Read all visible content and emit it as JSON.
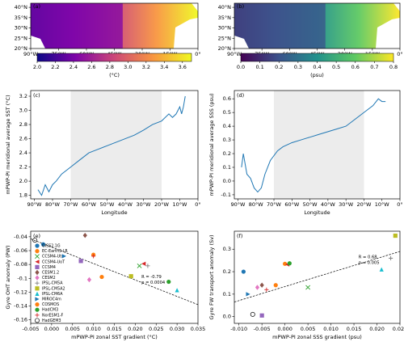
{
  "chart_data": [
    {
      "type": "heatmap",
      "panel": "(a)",
      "xlim": [
        -90,
        0
      ],
      "ylim": [
        20,
        42
      ],
      "xticks": [
        {
          "value": -90,
          "label": "90°W"
        },
        {
          "value": -75,
          "label": "75°W"
        },
        {
          "value": -60,
          "label": "60°W"
        },
        {
          "value": -45,
          "label": "45°W"
        },
        {
          "value": -30,
          "label": "30°W"
        },
        {
          "value": -15,
          "label": "15°W"
        },
        {
          "value": 0,
          "label": "0°"
        }
      ],
      "yticks": [
        {
          "value": 20,
          "label": "20°N"
        },
        {
          "value": 25,
          "label": "25°N"
        },
        {
          "value": 30,
          "label": "30°N"
        },
        {
          "value": 35,
          "label": "35°N"
        },
        {
          "value": 40,
          "label": "40°N"
        }
      ],
      "colorscale": [
        "#0d0887",
        "#7e03a8",
        "#cc4778",
        "#f89540",
        "#f0f921"
      ],
      "clim": [
        2.0,
        3.7
      ],
      "cticks": [
        {
          "value": 2.0,
          "label": "2.0"
        },
        2.2,
        2.4,
        2.6,
        2.8,
        {
          "value": 3.0,
          "label": "3.0"
        },
        3.2,
        3.4,
        3.6
      ],
      "colorbar_label": "(°C)"
    },
    {
      "type": "heatmap",
      "panel": "(b)",
      "xlim": [
        -90,
        0
      ],
      "ylim": [
        20,
        42
      ],
      "xticks": [
        {
          "value": -90,
          "label": "90°W"
        },
        {
          "value": -75,
          "label": "75°W"
        },
        {
          "value": -60,
          "label": "60°W"
        },
        {
          "value": -45,
          "label": "45°W"
        },
        {
          "value": -30,
          "label": "30°W"
        },
        {
          "value": -15,
          "label": "15°W"
        },
        {
          "value": 0,
          "label": "0°"
        }
      ],
      "yticks": [
        {
          "value": 20,
          "label": "20°N"
        },
        {
          "value": 25,
          "label": "25°N"
        },
        {
          "value": 30,
          "label": "30°N"
        },
        {
          "value": 35,
          "label": "35°N"
        },
        {
          "value": 40,
          "label": "40°N"
        }
      ],
      "colorscale": [
        "#440154",
        "#3b528b",
        "#21918c",
        "#5ec962",
        "#fde725"
      ],
      "clim": [
        0.0,
        0.8
      ],
      "cticks": [
        {
          "value": 0.0,
          "label": "0.0"
        },
        0.1,
        0.2,
        0.3,
        0.4,
        0.5,
        0.6,
        0.7,
        0.8
      ],
      "colorbar_label": "(psu)"
    },
    {
      "type": "line",
      "panel": "(c)",
      "x_label": "Longitude",
      "y_label": "mPWP-PI meridional average SST (°C)",
      "xlim": [
        -92,
        0
      ],
      "ylim": [
        1.75,
        3.28
      ],
      "shaded_xrange": [
        -70,
        -20
      ],
      "xticks": [
        {
          "value": -90,
          "label": "90°W"
        },
        {
          "value": -80,
          "label": "80°W"
        },
        {
          "value": -70,
          "label": "70°W"
        },
        {
          "value": -60,
          "label": "60°W"
        },
        {
          "value": -50,
          "label": "50°W"
        },
        {
          "value": -40,
          "label": "40°W"
        },
        {
          "value": -30,
          "label": "30°W"
        },
        {
          "value": -20,
          "label": "20°W"
        },
        {
          "value": -10,
          "label": "10°W"
        },
        {
          "value": 0,
          "label": "0°"
        }
      ],
      "yticks": [
        1.8,
        {
          "value": 2.0,
          "label": "2.0"
        },
        2.2,
        2.4,
        2.6,
        2.8,
        {
          "value": 3.0,
          "label": "3.0"
        },
        3.2
      ],
      "x": [
        -88,
        -86,
        -84,
        -82,
        -80,
        -78,
        -75,
        -70,
        -65,
        -60,
        -55,
        -50,
        -45,
        -40,
        -35,
        -30,
        -25,
        -20,
        -16,
        -14,
        -12,
        -10,
        -9,
        -8,
        -7
      ],
      "series": [
        {
          "color": "#1f77b4",
          "values": [
            1.88,
            1.8,
            1.95,
            1.85,
            1.95,
            2.0,
            2.1,
            2.2,
            2.3,
            2.4,
            2.45,
            2.5,
            2.55,
            2.6,
            2.65,
            2.72,
            2.8,
            2.85,
            2.95,
            2.9,
            2.95,
            3.05,
            2.95,
            3.05,
            3.2
          ]
        }
      ]
    },
    {
      "type": "line",
      "panel": "(d)",
      "x_label": "Longitude",
      "y_label": "mPWP-PI meridional average SSS (psu)",
      "xlim": [
        -92,
        0
      ],
      "ylim": [
        -0.13,
        0.66
      ],
      "shaded_xrange": [
        -70,
        -20
      ],
      "xticks": [
        {
          "value": -90,
          "label": "90°W"
        },
        {
          "value": -80,
          "label": "80°W"
        },
        {
          "value": -70,
          "label": "70°W"
        },
        {
          "value": -60,
          "label": "60°W"
        },
        {
          "value": -50,
          "label": "50°W"
        },
        {
          "value": -40,
          "label": "40°W"
        },
        {
          "value": -30,
          "label": "30°W"
        },
        {
          "value": -20,
          "label": "20°W"
        },
        {
          "value": -10,
          "label": "10°W"
        },
        {
          "value": 0,
          "label": "0°"
        }
      ],
      "yticks": [
        -0.1,
        {
          "value": 0.0,
          "label": "0.0"
        },
        0.1,
        0.2,
        0.3,
        0.4,
        0.5,
        0.6
      ],
      "x": [
        -88,
        -87,
        -85,
        -83,
        -81,
        -79,
        -77,
        -75,
        -72,
        -68,
        -65,
        -60,
        -55,
        -50,
        -45,
        -40,
        -35,
        -30,
        -25,
        -20,
        -15,
        -12,
        -10,
        -8
      ],
      "series": [
        {
          "color": "#1f77b4",
          "values": [
            0.1,
            0.2,
            0.05,
            0.02,
            -0.05,
            -0.08,
            -0.05,
            0.05,
            0.15,
            0.22,
            0.25,
            0.28,
            0.3,
            0.32,
            0.34,
            0.36,
            0.38,
            0.4,
            0.45,
            0.5,
            0.55,
            0.6,
            0.58,
            0.58
          ]
        }
      ]
    },
    {
      "type": "scatter",
      "panel": "(e)",
      "x_label": "mPWP-PI zonal SST gradient (°C)",
      "y_label": "Gyre OHT anomaly (PW)",
      "xlim": [
        -0.005,
        0.035
      ],
      "ylim": [
        -0.165,
        -0.032
      ],
      "xticks": [
        -0.005,
        {
          "value": 0.0,
          "label": "0.000"
        },
        0.005,
        {
          "value": 0.01,
          "label": "0.010"
        },
        0.015,
        {
          "value": 0.02,
          "label": "0.020"
        },
        0.025,
        {
          "value": 0.03,
          "label": "0.030"
        },
        0.035
      ],
      "yticks": [
        -0.16,
        -0.14,
        -0.12,
        -0.1,
        -0.08,
        -0.06,
        -0.04
      ],
      "annotations": [
        "R = -0.79",
        "p = 0.0004"
      ],
      "trend_line": {
        "x": [
          -0.005,
          0.035
        ],
        "y": [
          -0.043,
          -0.138
        ]
      },
      "series": [
        {
          "name": "GISS2.1G",
          "color": "#1f77b4",
          "marker": "circle",
          "x": [
            -0.002
          ],
          "values": [
            -0.051
          ]
        },
        {
          "name": "EC-Earth3-LR",
          "color": "#ff7f0e",
          "marker": "circle",
          "x": [
            0.01
          ],
          "values": [
            -0.066
          ]
        },
        {
          "name": "CCSM4-Utr",
          "color": "#2ca02c",
          "marker": "x",
          "x": [
            0.021
          ],
          "values": [
            -0.082
          ]
        },
        {
          "name": "CCSM4-UoT",
          "color": "#d62728",
          "marker": "tri-left",
          "x": [
            0.022
          ],
          "values": [
            -0.079
          ]
        },
        {
          "name": "CCSM4",
          "color": "#9467bd",
          "marker": "square",
          "x": [
            0.007
          ],
          "values": [
            -0.075
          ]
        },
        {
          "name": "CESM1.2",
          "color": "#8c564b",
          "marker": "diamond",
          "x": [
            0.008
          ],
          "values": [
            -0.038
          ]
        },
        {
          "name": "CESM2",
          "color": "#e377c2",
          "marker": "diamond",
          "x": [
            0.009
          ],
          "values": [
            -0.102
          ]
        },
        {
          "name": "IPSL-CM5A",
          "color": "#7f7f7f",
          "marker": "plus",
          "x": [
            0.023
          ],
          "values": [
            -0.082
          ]
        },
        {
          "name": "IPSL-CM5A2",
          "color": "#bcbd22",
          "marker": "square",
          "x": [
            0.019
          ],
          "values": [
            -0.097
          ]
        },
        {
          "name": "IPSL-CM6A",
          "color": "#17becf",
          "marker": "tri-up",
          "x": [
            0.03
          ],
          "values": [
            -0.117
          ]
        },
        {
          "name": "MIROC4m",
          "color": "#1f77b4",
          "marker": "tri-right",
          "x": [
            0.003
          ],
          "values": [
            -0.068
          ]
        },
        {
          "name": "COSMOS",
          "color": "#ff7f0e",
          "marker": "circle",
          "x": [
            0.012
          ],
          "values": [
            -0.098
          ]
        },
        {
          "name": "HadCM3",
          "color": "#2ca02c",
          "marker": "circle",
          "x": [
            0.028
          ],
          "values": [
            -0.105
          ]
        },
        {
          "name": "NorESM1-F",
          "color": "#d62728",
          "marker": "plus",
          "x": [
            0.01
          ],
          "values": [
            -0.068
          ]
        },
        {
          "name": "HadGEM3",
          "color": "#000000",
          "marker": "open",
          "x": [
            -0.004
          ],
          "values": [
            -0.045
          ]
        }
      ]
    },
    {
      "type": "scatter",
      "panel": "(f)",
      "x_label": "mPWP-PI zonal SSS gradient (psu)",
      "y_label": "Gyre FW transport anomaly (Sv)",
      "xlim": [
        -0.011,
        0.025
      ],
      "ylim": [
        -0.03,
        0.38
      ],
      "xticks": [
        {
          "value": -0.01,
          "label": "-0.010"
        },
        -0.005,
        {
          "value": 0.0,
          "label": "0.000"
        },
        0.005,
        {
          "value": 0.01,
          "label": "0.010"
        },
        0.015,
        {
          "value": 0.02,
          "label": "0.020"
        },
        0.025
      ],
      "yticks": [
        {
          "value": 0.0,
          "label": "0.0"
        },
        0.1,
        0.2,
        0.3
      ],
      "annotations": [
        "R = 0.68",
        "p = 0.005"
      ],
      "trend_line": {
        "x": [
          -0.011,
          0.025
        ],
        "y": [
          0.065,
          0.29
        ]
      },
      "series": [
        {
          "color": "#1f77b4",
          "marker": "circle",
          "x": [
            -0.009
          ],
          "values": [
            0.2
          ]
        },
        {
          "color": "#ff7f0e",
          "marker": "circle",
          "x": [
            0.0
          ],
          "values": [
            0.235
          ]
        },
        {
          "color": "#2ca02c",
          "marker": "x",
          "x": [
            0.005
          ],
          "values": [
            0.13
          ]
        },
        {
          "color": "#d62728",
          "marker": "tri-left",
          "x": [
            0.0005
          ],
          "values": [
            0.232
          ]
        },
        {
          "color": "#9467bd",
          "marker": "square",
          "x": [
            -0.005
          ],
          "values": [
            0.005
          ]
        },
        {
          "color": "#8c564b",
          "marker": "diamond",
          "x": [
            -0.005
          ],
          "values": [
            0.14
          ]
        },
        {
          "color": "#e377c2",
          "marker": "diamond",
          "x": [
            -0.006
          ],
          "values": [
            0.13
          ]
        },
        {
          "color": "#7f7f7f",
          "marker": "plus",
          "x": [
            0.023
          ],
          "values": [
            0.26
          ]
        },
        {
          "color": "#bcbd22",
          "marker": "square",
          "x": [
            0.024
          ],
          "values": [
            0.36
          ]
        },
        {
          "color": "#17becf",
          "marker": "tri-up",
          "x": [
            0.021
          ],
          "values": [
            0.21
          ]
        },
        {
          "color": "#1f77b4",
          "marker": "tri-right",
          "x": [
            -0.008
          ],
          "values": [
            0.1
          ]
        },
        {
          "color": "#ff7f0e",
          "marker": "circle",
          "x": [
            -0.002
          ],
          "values": [
            0.14
          ]
        },
        {
          "color": "#2ca02c",
          "marker": "circle",
          "x": [
            0.001
          ],
          "values": [
            0.237
          ]
        },
        {
          "color": "#d62728",
          "marker": "plus",
          "x": [
            -0.004
          ],
          "values": [
            0.12
          ]
        },
        {
          "color": "#000000",
          "marker": "open",
          "x": [
            -0.007
          ],
          "values": [
            0.01
          ]
        }
      ]
    }
  ]
}
